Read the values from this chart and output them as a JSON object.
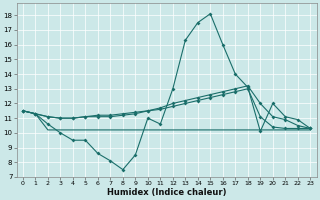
{
  "xlabel": "Humidex (Indice chaleur)",
  "bg_color": "#cce8e8",
  "line_color": "#1a6e6a",
  "xlim": [
    -0.5,
    23.5
  ],
  "ylim": [
    7,
    18.8
  ],
  "xticks": [
    0,
    1,
    2,
    3,
    4,
    5,
    6,
    7,
    8,
    9,
    10,
    11,
    12,
    13,
    14,
    15,
    16,
    17,
    18,
    19,
    20,
    21,
    22,
    23
  ],
  "yticks": [
    7,
    8,
    9,
    10,
    11,
    12,
    13,
    14,
    15,
    16,
    17,
    18
  ],
  "line1_x": [
    0,
    1,
    2,
    3,
    4,
    5,
    6,
    7,
    8,
    9,
    10,
    11,
    12,
    13,
    14,
    15,
    16,
    17,
    18,
    19,
    20,
    21,
    22,
    23
  ],
  "line1_y": [
    11.5,
    11.3,
    10.6,
    10.0,
    9.5,
    9.5,
    8.6,
    8.1,
    7.5,
    8.5,
    11.0,
    10.6,
    13.0,
    16.3,
    17.5,
    18.1,
    16.0,
    14.0,
    13.1,
    10.1,
    12.0,
    11.1,
    10.9,
    10.3
  ],
  "line2_x": [
    0,
    1,
    2,
    3,
    4,
    5,
    6,
    7,
    8,
    9,
    10,
    11,
    12,
    13,
    14,
    15,
    16,
    17,
    18,
    19,
    20,
    21,
    22,
    23
  ],
  "line2_y": [
    11.5,
    11.3,
    11.1,
    11.0,
    11.0,
    11.1,
    11.1,
    11.1,
    11.2,
    11.3,
    11.5,
    11.7,
    12.0,
    12.2,
    12.4,
    12.6,
    12.8,
    13.0,
    13.2,
    12.0,
    11.1,
    10.9,
    10.5,
    10.3
  ],
  "line3_x": [
    0,
    1,
    2,
    3,
    4,
    5,
    6,
    7,
    8,
    9,
    10,
    11,
    12,
    13,
    14,
    15,
    16,
    17,
    18,
    19,
    20,
    21,
    22,
    23
  ],
  "line3_y": [
    11.5,
    11.3,
    11.1,
    11.0,
    11.0,
    11.1,
    11.2,
    11.2,
    11.3,
    11.4,
    11.5,
    11.6,
    11.8,
    12.0,
    12.2,
    12.4,
    12.6,
    12.8,
    13.0,
    11.1,
    10.4,
    10.3,
    10.3,
    10.3
  ],
  "line4_x": [
    0,
    1,
    2,
    3,
    4,
    5,
    6,
    7,
    8,
    9,
    10,
    11,
    12,
    13,
    14,
    15,
    16,
    17,
    18,
    19,
    20,
    21,
    22,
    23
  ],
  "line4_y": [
    11.5,
    11.3,
    10.2,
    10.2,
    10.2,
    10.2,
    10.2,
    10.2,
    10.2,
    10.2,
    10.2,
    10.2,
    10.2,
    10.2,
    10.2,
    10.2,
    10.2,
    10.2,
    10.2,
    10.2,
    10.2,
    10.2,
    10.2,
    10.2
  ]
}
